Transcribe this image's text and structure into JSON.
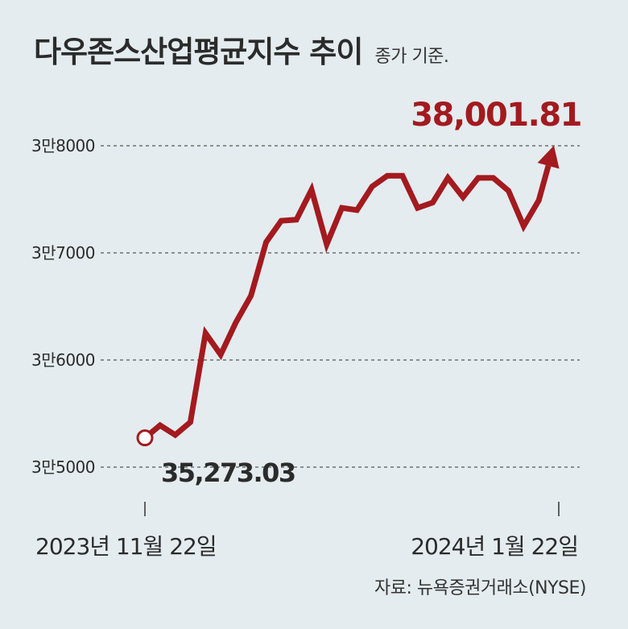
{
  "title": "다우존스산업평균지수 추이",
  "subtitle": "종가 기준.",
  "source": "자료: 뉴욕증권거래소(NYSE)",
  "colors": {
    "line": "#a31a1f",
    "highlight": "#a31a1f",
    "text": "#2b2b2b",
    "grid": "#555555",
    "background": "#e4ecef"
  },
  "chart_data": {
    "type": "line",
    "title": "다우존스산업평균지수 추이",
    "subtitle": "종가 기준.",
    "xlabel": "",
    "ylabel": "",
    "ylim": [
      35000,
      38000
    ],
    "yticks": [
      35000,
      36000,
      37000,
      38000
    ],
    "ytick_labels": [
      "3만5000",
      "3만6000",
      "3만7000",
      "3만8000"
    ],
    "x_start_label": "2023년 11월 22일",
    "x_end_label": "2024년 1월 22일",
    "grid": "horizontal dashed",
    "start": {
      "date": "2023년 11월 22일",
      "value": 35273.03,
      "label": "35,273.03"
    },
    "end": {
      "date": "2024년 1월 22일",
      "value": 38001.81,
      "label": "38,001.81"
    },
    "values": [
      35273.03,
      35390,
      35300,
      35420,
      36250,
      36050,
      36350,
      36600,
      37100,
      37300,
      37310,
      37590,
      37080,
      37420,
      37400,
      37620,
      37720,
      37720,
      37420,
      37470,
      37700,
      37520,
      37700,
      37700,
      37580,
      37250,
      37490,
      38001.81
    ]
  }
}
